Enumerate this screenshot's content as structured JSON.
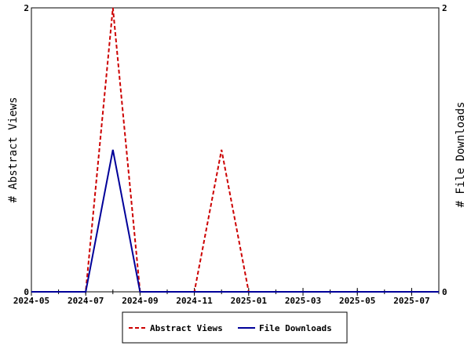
{
  "chart_data": {
    "type": "line",
    "title": "",
    "ylabel_left": "# Abstract Views",
    "ylabel_right": "# File Downloads",
    "x_tick_labels": [
      "2024-05",
      "2024-07",
      "2024-09",
      "2024-11",
      "2025-01",
      "2025-03",
      "2025-05",
      "2025-07"
    ],
    "x_range": [
      "2024-05",
      "2025-08"
    ],
    "ylim_left": [
      0,
      2
    ],
    "ylim_right": [
      0,
      2
    ],
    "y_tick_labels_left": [
      "0",
      "2"
    ],
    "y_tick_labels_right": [
      "0",
      "2"
    ],
    "grid": false,
    "legend_position": "bottom-center",
    "x": [
      "2024-05",
      "2024-06",
      "2024-07",
      "2024-08",
      "2024-09",
      "2024-10",
      "2024-11",
      "2024-12",
      "2025-01",
      "2025-02",
      "2025-03",
      "2025-04",
      "2025-05",
      "2025-06",
      "2025-07",
      "2025-08"
    ],
    "series": [
      {
        "name": "Abstract Views",
        "color": "#cc0000",
        "dash": "dashed",
        "axis": "left",
        "values": [
          0,
          0,
          0,
          2,
          0,
          0,
          0,
          1,
          0,
          0,
          0,
          0,
          0,
          0,
          0,
          0
        ]
      },
      {
        "name": "File Downloads",
        "color": "#000099",
        "dash": "solid",
        "axis": "right",
        "values": [
          0,
          0,
          0,
          1,
          0,
          0,
          0,
          0,
          0,
          0,
          0,
          0,
          0,
          0,
          0,
          0
        ]
      }
    ]
  }
}
